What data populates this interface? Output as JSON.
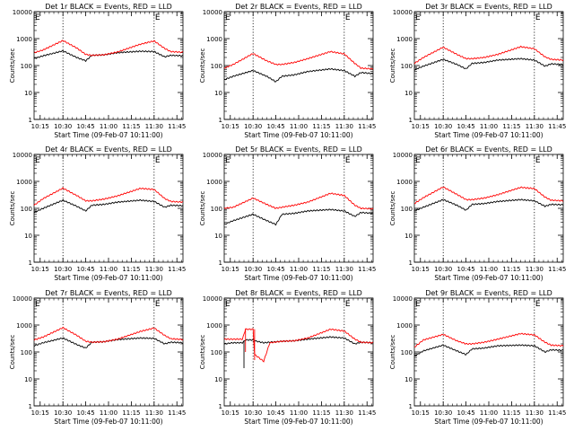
{
  "layout": {
    "rows": 3,
    "cols": 3
  },
  "shared": {
    "ylabel": "Counts/sec",
    "xlabel": "Start Time (09-Feb-07 10:11:00)",
    "xticks": [
      "10:15",
      "10:30",
      "10:45",
      "11:00",
      "11:15",
      "11:30",
      "11:45"
    ],
    "black_color": "#000000",
    "red_color": "#ff0000",
    "corner_marks": [
      "E",
      "E"
    ]
  },
  "chart_data": [
    {
      "type": "line",
      "title": "Det 1r BLACK = Events, RED = LLD",
      "yticks": [
        "1",
        "10",
        "100",
        "1000",
        "10000"
      ],
      "ylim": [
        1,
        10000
      ],
      "yscale": "log",
      "xlim_minutes": [
        0,
        98
      ],
      "vlines_minutes": [
        19,
        79
      ],
      "red": {
        "knots": [
          [
            0,
            300
          ],
          [
            6,
            380
          ],
          [
            19,
            850
          ],
          [
            28,
            450
          ],
          [
            34,
            260
          ],
          [
            38,
            240
          ],
          [
            46,
            250
          ],
          [
            55,
            320
          ],
          [
            70,
            620
          ],
          [
            79,
            820
          ],
          [
            86,
            430
          ],
          [
            90,
            330
          ],
          [
            98,
            310
          ]
        ],
        "jumps": []
      },
      "black": {
        "knots": [
          [
            0,
            180
          ],
          [
            6,
            230
          ],
          [
            19,
            350
          ],
          [
            28,
            200
          ],
          [
            34,
            150
          ],
          [
            38,
            240
          ],
          [
            46,
            250
          ],
          [
            55,
            300
          ],
          [
            70,
            340
          ],
          [
            79,
            330
          ],
          [
            86,
            210
          ],
          [
            90,
            240
          ],
          [
            98,
            230
          ]
        ],
        "jumps": []
      }
    },
    {
      "type": "line",
      "title": "Det 2r BLACK = Events, RED = LLD",
      "yticks": [
        "1",
        "10",
        "100",
        "1000",
        "10000"
      ],
      "ylim": [
        1,
        10000
      ],
      "yscale": "log",
      "xlim_minutes": [
        0,
        98
      ],
      "vlines_minutes": [
        19,
        79
      ],
      "red": {
        "knots": [
          [
            0,
            80
          ],
          [
            6,
            110
          ],
          [
            19,
            280
          ],
          [
            28,
            150
          ],
          [
            34,
            110
          ],
          [
            38,
            110
          ],
          [
            46,
            130
          ],
          [
            55,
            180
          ],
          [
            70,
            330
          ],
          [
            79,
            270
          ],
          [
            86,
            120
          ],
          [
            90,
            80
          ],
          [
            98,
            75
          ]
        ],
        "jumps": []
      },
      "black": {
        "knots": [
          [
            0,
            30
          ],
          [
            6,
            40
          ],
          [
            19,
            65
          ],
          [
            28,
            40
          ],
          [
            34,
            25
          ],
          [
            38,
            40
          ],
          [
            46,
            45
          ],
          [
            55,
            60
          ],
          [
            70,
            75
          ],
          [
            79,
            65
          ],
          [
            86,
            40
          ],
          [
            90,
            55
          ],
          [
            98,
            50
          ]
        ],
        "jumps": []
      }
    },
    {
      "type": "line",
      "title": "Det 3r BLACK = Events, RED = LLD",
      "yticks": [
        "1",
        "10",
        "100",
        "1000",
        "10000"
      ],
      "ylim": [
        1,
        10000
      ],
      "yscale": "log",
      "xlim_minutes": [
        0,
        98
      ],
      "vlines_minutes": [
        19,
        79
      ],
      "red": {
        "knots": [
          [
            0,
            120
          ],
          [
            6,
            200
          ],
          [
            19,
            480
          ],
          [
            28,
            260
          ],
          [
            34,
            180
          ],
          [
            38,
            180
          ],
          [
            46,
            200
          ],
          [
            55,
            260
          ],
          [
            70,
            500
          ],
          [
            79,
            420
          ],
          [
            86,
            210
          ],
          [
            90,
            170
          ],
          [
            98,
            160
          ]
        ],
        "jumps": []
      },
      "black": {
        "knots": [
          [
            0,
            70
          ],
          [
            6,
            95
          ],
          [
            19,
            170
          ],
          [
            28,
            110
          ],
          [
            34,
            75
          ],
          [
            38,
            120
          ],
          [
            46,
            130
          ],
          [
            55,
            160
          ],
          [
            70,
            180
          ],
          [
            79,
            160
          ],
          [
            86,
            95
          ],
          [
            90,
            115
          ],
          [
            98,
            110
          ]
        ],
        "jumps": []
      }
    },
    {
      "type": "line",
      "title": "Det 4r BLACK = Events, RED = LLD",
      "yticks": [
        "1",
        "10",
        "100",
        "1000",
        "10000"
      ],
      "ylim": [
        1,
        10000
      ],
      "yscale": "log",
      "xlim_minutes": [
        0,
        98
      ],
      "vlines_minutes": [
        19,
        79
      ],
      "red": {
        "knots": [
          [
            0,
            130
          ],
          [
            6,
            230
          ],
          [
            19,
            560
          ],
          [
            28,
            300
          ],
          [
            34,
            190
          ],
          [
            38,
            190
          ],
          [
            46,
            220
          ],
          [
            55,
            290
          ],
          [
            70,
            550
          ],
          [
            79,
            500
          ],
          [
            86,
            230
          ],
          [
            90,
            180
          ],
          [
            98,
            170
          ]
        ],
        "jumps": []
      },
      "black": {
        "knots": [
          [
            0,
            70
          ],
          [
            6,
            100
          ],
          [
            19,
            200
          ],
          [
            28,
            120
          ],
          [
            34,
            80
          ],
          [
            38,
            130
          ],
          [
            46,
            140
          ],
          [
            55,
            170
          ],
          [
            70,
            200
          ],
          [
            79,
            180
          ],
          [
            86,
            110
          ],
          [
            90,
            130
          ],
          [
            98,
            125
          ]
        ],
        "jumps": []
      }
    },
    {
      "type": "line",
      "title": "Det 5r BLACK = Events, RED = LLD",
      "yticks": [
        "1",
        "10",
        "100",
        "1000",
        "10000"
      ],
      "ylim": [
        1,
        10000
      ],
      "yscale": "log",
      "xlim_minutes": [
        0,
        98
      ],
      "vlines_minutes": [
        19,
        79
      ],
      "red": {
        "knots": [
          [
            0,
            100
          ],
          [
            6,
            110
          ],
          [
            19,
            240
          ],
          [
            28,
            140
          ],
          [
            34,
            100
          ],
          [
            38,
            110
          ],
          [
            46,
            130
          ],
          [
            55,
            170
          ],
          [
            70,
            360
          ],
          [
            79,
            300
          ],
          [
            86,
            130
          ],
          [
            90,
            100
          ],
          [
            98,
            95
          ]
        ],
        "jumps": []
      },
      "black": {
        "knots": [
          [
            0,
            25
          ],
          [
            6,
            35
          ],
          [
            19,
            60
          ],
          [
            28,
            35
          ],
          [
            34,
            25
          ],
          [
            38,
            60
          ],
          [
            46,
            65
          ],
          [
            55,
            80
          ],
          [
            70,
            90
          ],
          [
            79,
            80
          ],
          [
            86,
            50
          ],
          [
            90,
            70
          ],
          [
            98,
            65
          ]
        ],
        "jumps": []
      }
    },
    {
      "type": "line",
      "title": "Det 6r BLACK = Events, RED = LLD",
      "yticks": [
        "1",
        "10",
        "100",
        "1000",
        "10000"
      ],
      "ylim": [
        1,
        10000
      ],
      "yscale": "log",
      "xlim_minutes": [
        0,
        98
      ],
      "vlines_minutes": [
        19,
        79
      ],
      "red": {
        "knots": [
          [
            0,
            150
          ],
          [
            6,
            250
          ],
          [
            19,
            620
          ],
          [
            28,
            330
          ],
          [
            34,
            210
          ],
          [
            38,
            210
          ],
          [
            46,
            240
          ],
          [
            55,
            320
          ],
          [
            70,
            600
          ],
          [
            79,
            540
          ],
          [
            86,
            260
          ],
          [
            90,
            200
          ],
          [
            98,
            190
          ]
        ],
        "jumps": []
      },
      "black": {
        "knots": [
          [
            0,
            80
          ],
          [
            6,
            110
          ],
          [
            19,
            210
          ],
          [
            28,
            130
          ],
          [
            34,
            85
          ],
          [
            38,
            140
          ],
          [
            46,
            150
          ],
          [
            55,
            180
          ],
          [
            70,
            210
          ],
          [
            79,
            190
          ],
          [
            86,
            120
          ],
          [
            90,
            140
          ],
          [
            98,
            135
          ]
        ],
        "jumps": []
      }
    },
    {
      "type": "line",
      "title": "Det 7r BLACK = Events, RED = LLD",
      "yticks": [
        "1",
        "10",
        "100",
        "1000",
        "10000"
      ],
      "ylim": [
        1,
        10000
      ],
      "yscale": "log",
      "xlim_minutes": [
        0,
        98
      ],
      "vlines_minutes": [
        19,
        79
      ],
      "red": {
        "knots": [
          [
            0,
            280
          ],
          [
            6,
            360
          ],
          [
            19,
            800
          ],
          [
            28,
            420
          ],
          [
            34,
            250
          ],
          [
            38,
            230
          ],
          [
            46,
            240
          ],
          [
            55,
            300
          ],
          [
            70,
            580
          ],
          [
            79,
            780
          ],
          [
            86,
            410
          ],
          [
            90,
            310
          ],
          [
            98,
            290
          ]
        ],
        "jumps": []
      },
      "black": {
        "knots": [
          [
            0,
            170
          ],
          [
            6,
            220
          ],
          [
            19,
            330
          ],
          [
            28,
            190
          ],
          [
            34,
            140
          ],
          [
            38,
            230
          ],
          [
            46,
            240
          ],
          [
            55,
            290
          ],
          [
            70,
            330
          ],
          [
            79,
            320
          ],
          [
            86,
            200
          ],
          [
            90,
            230
          ],
          [
            98,
            220
          ]
        ],
        "jumps": []
      }
    },
    {
      "type": "line",
      "title": "Det 8r BLACK = Events, RED = LLD",
      "yticks": [
        "1",
        "10",
        "100",
        "1000",
        "10000"
      ],
      "ylim": [
        1,
        10000
      ],
      "yscale": "log",
      "xlim_minutes": [
        0,
        98
      ],
      "vlines_minutes": [
        19,
        79
      ],
      "red": {
        "knots": [
          [
            0,
            300
          ],
          [
            6,
            300
          ],
          [
            12,
            300
          ],
          [
            14,
            700
          ],
          [
            19,
            700
          ],
          [
            20,
            80
          ],
          [
            26,
            45
          ],
          [
            30,
            220
          ],
          [
            38,
            250
          ],
          [
            46,
            260
          ],
          [
            55,
            330
          ],
          [
            70,
            700
          ],
          [
            79,
            600
          ],
          [
            86,
            300
          ],
          [
            90,
            230
          ],
          [
            98,
            220
          ]
        ],
        "jumps": [
          [
            14,
            100,
            750
          ],
          [
            20,
            50,
            700
          ]
        ]
      },
      "black": {
        "knots": [
          [
            0,
            200
          ],
          [
            6,
            220
          ],
          [
            12,
            220
          ],
          [
            14,
            280
          ],
          [
            19,
            280
          ],
          [
            20,
            260
          ],
          [
            26,
            220
          ],
          [
            30,
            230
          ],
          [
            38,
            250
          ],
          [
            46,
            260
          ],
          [
            55,
            300
          ],
          [
            70,
            360
          ],
          [
            79,
            330
          ],
          [
            86,
            200
          ],
          [
            90,
            230
          ],
          [
            98,
            220
          ]
        ],
        "jumps": [
          [
            13,
            25,
            260
          ]
        ]
      }
    },
    {
      "type": "line",
      "title": "Det 9r BLACK = Events, RED = LLD",
      "yticks": [
        "1",
        "10",
        "100",
        "1000",
        "10000"
      ],
      "ylim": [
        1,
        10000
      ],
      "yscale": "log",
      "xlim_minutes": [
        0,
        98
      ],
      "vlines_minutes": [
        19,
        79
      ],
      "red": {
        "knots": [
          [
            0,
            150
          ],
          [
            6,
            280
          ],
          [
            19,
            450
          ],
          [
            28,
            260
          ],
          [
            34,
            200
          ],
          [
            38,
            200
          ],
          [
            46,
            230
          ],
          [
            55,
            300
          ],
          [
            70,
            480
          ],
          [
            79,
            430
          ],
          [
            86,
            230
          ],
          [
            90,
            180
          ],
          [
            98,
            170
          ]
        ],
        "jumps": []
      },
      "black": {
        "knots": [
          [
            0,
            70
          ],
          [
            6,
            110
          ],
          [
            19,
            180
          ],
          [
            28,
            110
          ],
          [
            34,
            80
          ],
          [
            38,
            130
          ],
          [
            46,
            140
          ],
          [
            55,
            170
          ],
          [
            70,
            180
          ],
          [
            79,
            170
          ],
          [
            86,
            100
          ],
          [
            90,
            120
          ],
          [
            98,
            115
          ]
        ],
        "jumps": []
      }
    }
  ]
}
